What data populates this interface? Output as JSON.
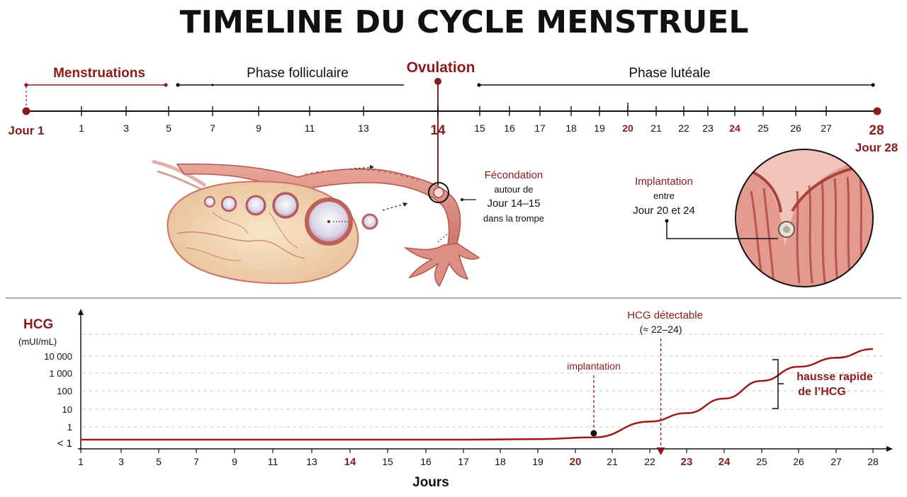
{
  "title": "TIMELINE DU CYCLE MENSTRUEL",
  "colors": {
    "accent": "#8b1a1a",
    "ink": "#111111",
    "tissue": "#e8a398",
    "tissue_dark": "#c46a60",
    "grid": "#c8c8c8"
  },
  "timeline": {
    "phases": {
      "menstruations": "Menstruations",
      "follicular": "Phase folliculaire",
      "ovulation": "Ovulation",
      "luteal": "Phase lutéale"
    },
    "start_label": "Jour 1",
    "ticks": [
      "1",
      "3",
      "5",
      "7",
      "9",
      "11",
      "13",
      "14",
      "15",
      "16",
      "17",
      "18",
      "19",
      "20",
      "21",
      "22",
      "23",
      "24",
      "25",
      "26",
      "27",
      "28"
    ],
    "highlighted_ticks": [
      "14",
      "20",
      "24",
      "28"
    ],
    "end_label": "Jour 28"
  },
  "annotations": {
    "fecondation": {
      "title": "Fécondation",
      "line1": "autour de",
      "line2": "Jour 14–15",
      "line3": "dans la trompe"
    },
    "implantation": {
      "title": "Implantation",
      "line1": "entre",
      "line2": "Jour 20 et 24"
    }
  },
  "chart_data": {
    "type": "line",
    "ylabel": "HCG",
    "yunit": "(mUI/mL)",
    "xlabel": "Jours",
    "y_ticks": [
      "10 000",
      "1 000",
      "100",
      "10",
      "1",
      "< 1"
    ],
    "x_ticks": [
      "1",
      "3",
      "5",
      "7",
      "9",
      "11",
      "13",
      "14",
      "15",
      "16",
      "17",
      "18",
      "19",
      "20",
      "21",
      "22",
      "23",
      "24",
      "25",
      "26",
      "27",
      "28"
    ],
    "x_highlighted": [
      "14",
      "20",
      "23",
      "24"
    ],
    "series": [
      {
        "points": [
          [
            1,
            0.5
          ],
          [
            17,
            0.5
          ],
          [
            19,
            0.6
          ],
          [
            20.5,
            0.9
          ],
          [
            22,
            2
          ],
          [
            23,
            6
          ],
          [
            24,
            40
          ],
          [
            25,
            400
          ],
          [
            26,
            2500
          ],
          [
            27,
            8000
          ],
          [
            28,
            25000
          ]
        ]
      }
    ],
    "markers": {
      "implantation": {
        "label": "implantation",
        "x": 20.5
      },
      "detectable": {
        "label": "HCG détectable",
        "sublabel": "(≈ 22–24)",
        "x": 22.3
      },
      "rise": {
        "label1": "hausse rapide",
        "label2": "de l’HCG"
      }
    },
    "grid": true
  }
}
